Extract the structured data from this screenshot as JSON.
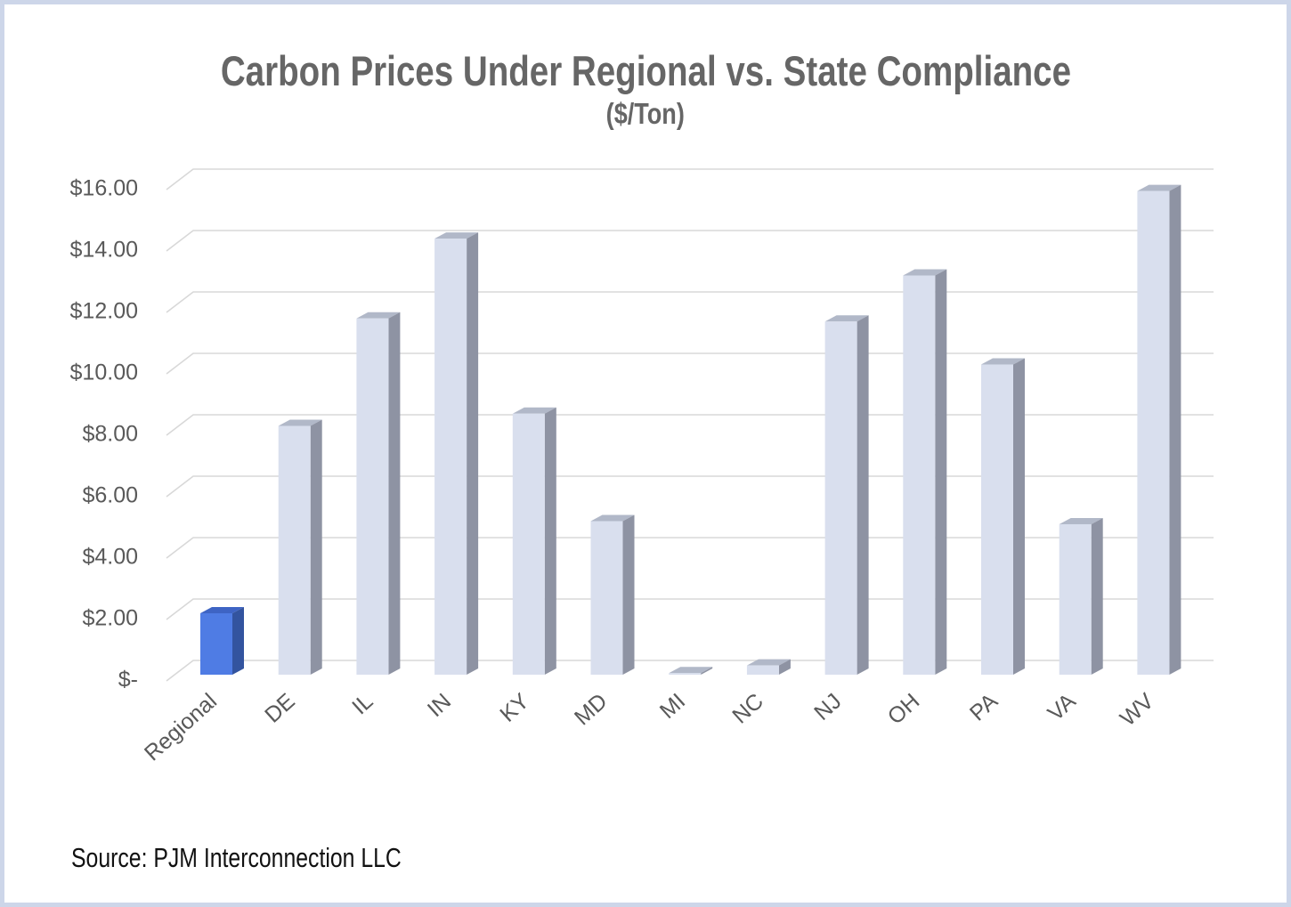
{
  "chart_data": {
    "type": "bar",
    "style": "3d-column",
    "title": "Carbon Prices Under Regional vs. State Compliance",
    "subtitle": "($/Ton)",
    "xlabel": "",
    "ylabel": "",
    "categories": [
      "Regional",
      "DE",
      "IL",
      "IN",
      "KY",
      "MD",
      "MI",
      "NC",
      "NJ",
      "OH",
      "PA",
      "VA",
      "WV"
    ],
    "values": [
      2.0,
      8.1,
      11.6,
      14.2,
      8.5,
      5.0,
      0.05,
      0.3,
      11.5,
      13.0,
      10.1,
      4.9,
      15.75
    ],
    "highlight_category": "Regional",
    "ylim": [
      0,
      16
    ],
    "ytick_step": 2,
    "ytick_labels": [
      "$-",
      "$2.00",
      "$4.00",
      "$6.00",
      "$8.00",
      "$10.00",
      "$12.00",
      "$14.00",
      "$16.00"
    ],
    "grid": true,
    "legend_position": "none",
    "colors": {
      "bar_front": "#d9dfee",
      "bar_top": "#b1b8c8",
      "bar_side": "#8e93a3",
      "highlight_front": "#4f7ce4",
      "highlight_top": "#3e64c4",
      "highlight_side": "#33549f",
      "gridline": "#d8d8d8",
      "axis_text": "#595959",
      "title_text": "#666666",
      "frame_border": "#cdd6e9"
    }
  },
  "footer": {
    "source": "Source: PJM Interconnection LLC"
  }
}
